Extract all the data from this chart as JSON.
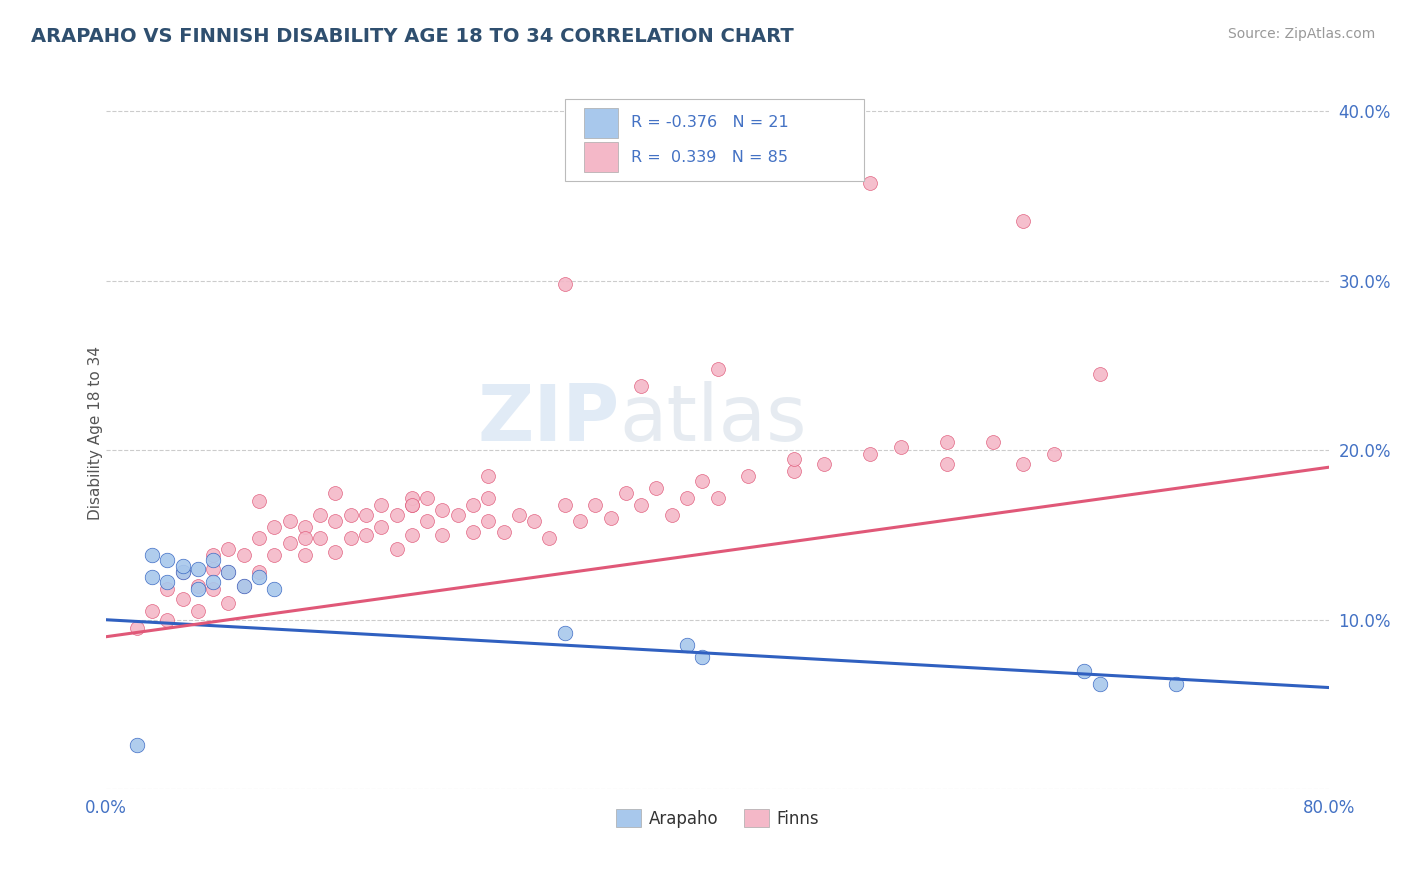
{
  "title": "ARAPAHO VS FINNISH DISABILITY AGE 18 TO 34 CORRELATION CHART",
  "source": "Source: ZipAtlas.com",
  "ylabel": "Disability Age 18 to 34",
  "xlim": [
    0.0,
    0.8
  ],
  "ylim": [
    0.0,
    0.42
  ],
  "xticks": [
    0.0,
    0.1,
    0.2,
    0.3,
    0.4,
    0.5,
    0.6,
    0.7,
    0.8
  ],
  "xticklabels": [
    "0.0%",
    "",
    "",
    "",
    "",
    "",
    "",
    "",
    "80.0%"
  ],
  "yticks": [
    0.0,
    0.1,
    0.2,
    0.3,
    0.4
  ],
  "yticklabels": [
    "",
    "10.0%",
    "20.0%",
    "30.0%",
    "40.0%"
  ],
  "arapaho_scatter_color": "#A8C8EC",
  "finns_scatter_color": "#F4B8C8",
  "arapaho_line_color": "#3060C0",
  "finns_line_color": "#E05878",
  "legend_R_color": "#4472C4",
  "legend_N_color": "#333333",
  "legend_arapaho_patch": "#A8C8EC",
  "legend_finns_patch": "#F4B8C8",
  "legend_arapaho_R": "-0.376",
  "legend_arapaho_N": "21",
  "legend_finns_R": "0.339",
  "legend_finns_N": "85",
  "watermark_zip": "ZIP",
  "watermark_atlas": "atlas",
  "arapaho_x": [
    0.02,
    0.03,
    0.03,
    0.04,
    0.04,
    0.05,
    0.05,
    0.06,
    0.06,
    0.07,
    0.07,
    0.08,
    0.09,
    0.1,
    0.11,
    0.3,
    0.38,
    0.39,
    0.64,
    0.65,
    0.7
  ],
  "arapaho_y": [
    0.026,
    0.125,
    0.138,
    0.122,
    0.135,
    0.128,
    0.132,
    0.118,
    0.13,
    0.122,
    0.135,
    0.128,
    0.12,
    0.125,
    0.118,
    0.092,
    0.085,
    0.078,
    0.07,
    0.062,
    0.062
  ],
  "finns_x": [
    0.02,
    0.03,
    0.04,
    0.04,
    0.05,
    0.05,
    0.06,
    0.06,
    0.07,
    0.07,
    0.07,
    0.08,
    0.08,
    0.08,
    0.09,
    0.09,
    0.1,
    0.1,
    0.11,
    0.11,
    0.12,
    0.12,
    0.13,
    0.13,
    0.13,
    0.14,
    0.14,
    0.15,
    0.15,
    0.16,
    0.16,
    0.17,
    0.17,
    0.18,
    0.18,
    0.19,
    0.19,
    0.2,
    0.2,
    0.21,
    0.21,
    0.22,
    0.22,
    0.23,
    0.24,
    0.24,
    0.25,
    0.25,
    0.26,
    0.27,
    0.28,
    0.29,
    0.3,
    0.31,
    0.32,
    0.33,
    0.34,
    0.35,
    0.36,
    0.37,
    0.38,
    0.39,
    0.4,
    0.42,
    0.45,
    0.47,
    0.5,
    0.52,
    0.55,
    0.58,
    0.6,
    0.62,
    0.3,
    0.4,
    0.5,
    0.6,
    0.65,
    0.2,
    0.35,
    0.25,
    0.15,
    0.1,
    0.45,
    0.55,
    0.2
  ],
  "finns_y": [
    0.095,
    0.105,
    0.1,
    0.118,
    0.112,
    0.128,
    0.105,
    0.12,
    0.118,
    0.13,
    0.138,
    0.11,
    0.128,
    0.142,
    0.12,
    0.138,
    0.128,
    0.148,
    0.138,
    0.155,
    0.145,
    0.158,
    0.138,
    0.155,
    0.148,
    0.148,
    0.162,
    0.14,
    0.158,
    0.148,
    0.162,
    0.15,
    0.162,
    0.155,
    0.168,
    0.142,
    0.162,
    0.15,
    0.168,
    0.158,
    0.172,
    0.15,
    0.165,
    0.162,
    0.152,
    0.168,
    0.158,
    0.172,
    0.152,
    0.162,
    0.158,
    0.148,
    0.168,
    0.158,
    0.168,
    0.16,
    0.175,
    0.168,
    0.178,
    0.162,
    0.172,
    0.182,
    0.172,
    0.185,
    0.188,
    0.192,
    0.198,
    0.202,
    0.192,
    0.205,
    0.192,
    0.198,
    0.298,
    0.248,
    0.358,
    0.335,
    0.245,
    0.172,
    0.238,
    0.185,
    0.175,
    0.17,
    0.195,
    0.205,
    0.168
  ],
  "background_color": "#FFFFFF",
  "grid_color": "#CCCCCC",
  "title_color": "#2F4F6F"
}
